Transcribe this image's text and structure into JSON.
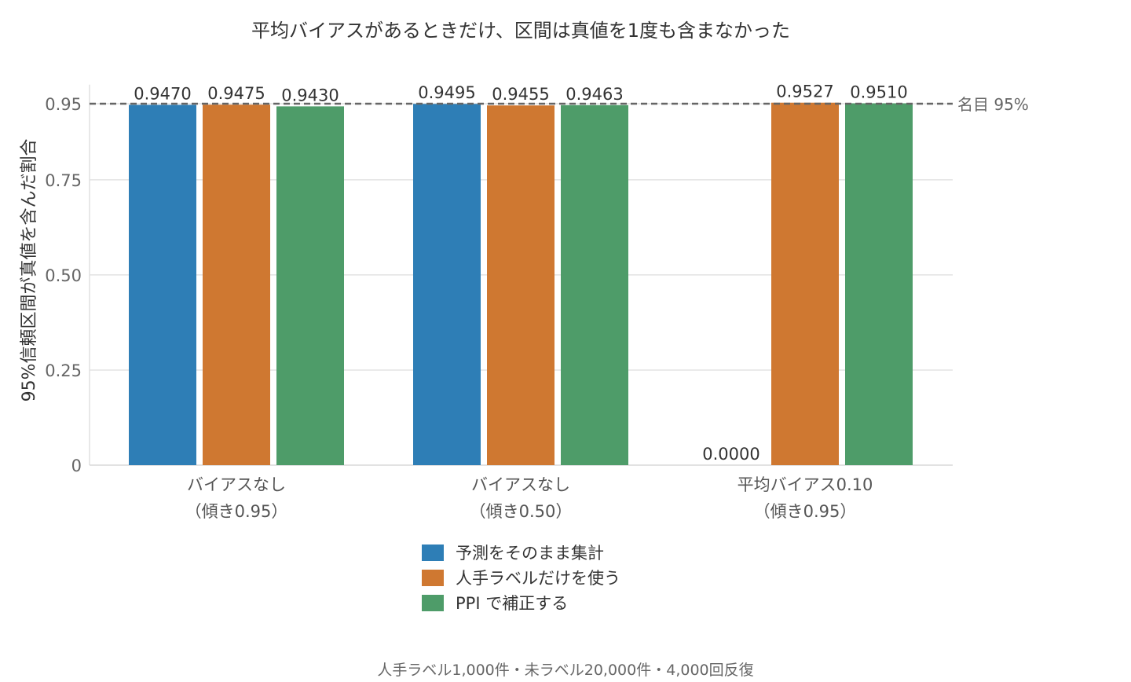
{
  "chart_data": {
    "type": "bar",
    "title": "平均バイアスがあるときだけ、区間は真値を1度も含まなかった",
    "ylabel": "95%信頼区間が真値を含んだ割合",
    "xlabel": "",
    "ylim": [
      0,
      1.0
    ],
    "yticks": [
      {
        "value": 0,
        "label": "0"
      },
      {
        "value": 0.25,
        "label": "0.25"
      },
      {
        "value": 0.5,
        "label": "0.50"
      },
      {
        "value": 0.75,
        "label": "0.75"
      },
      {
        "value": 0.95,
        "label": "0.95"
      }
    ],
    "categories": [
      {
        "line1": "バイアスなし",
        "line2": "（傾き0.95）"
      },
      {
        "line1": "バイアスなし",
        "line2": "（傾き0.50）"
      },
      {
        "line1": "平均バイアス0.10",
        "line2": "（傾き0.95）"
      }
    ],
    "series": [
      {
        "name": "予測をそのまま集計",
        "color": "#2e7eb6",
        "values": [
          0.947,
          0.9495,
          0.0
        ],
        "labels": [
          "0.9470",
          "0.9495",
          "0.0000"
        ]
      },
      {
        "name": "人手ラベルだけを使う",
        "color": "#cf7831",
        "values": [
          0.9475,
          0.9455,
          0.9527
        ],
        "labels": [
          "0.9475",
          "0.9455",
          "0.9527"
        ]
      },
      {
        "name": "PPI で補正する",
        "color": "#4e9c69",
        "values": [
          0.943,
          0.9463,
          0.951
        ],
        "labels": [
          "0.9430",
          "0.9463",
          "0.9510"
        ]
      }
    ],
    "reference_line": {
      "value": 0.95,
      "label": "名目 95%"
    },
    "grid": true,
    "legend_position": "bottom",
    "caption": "人手ラベル1,000件・未ラベル20,000件・4,000回反復"
  }
}
